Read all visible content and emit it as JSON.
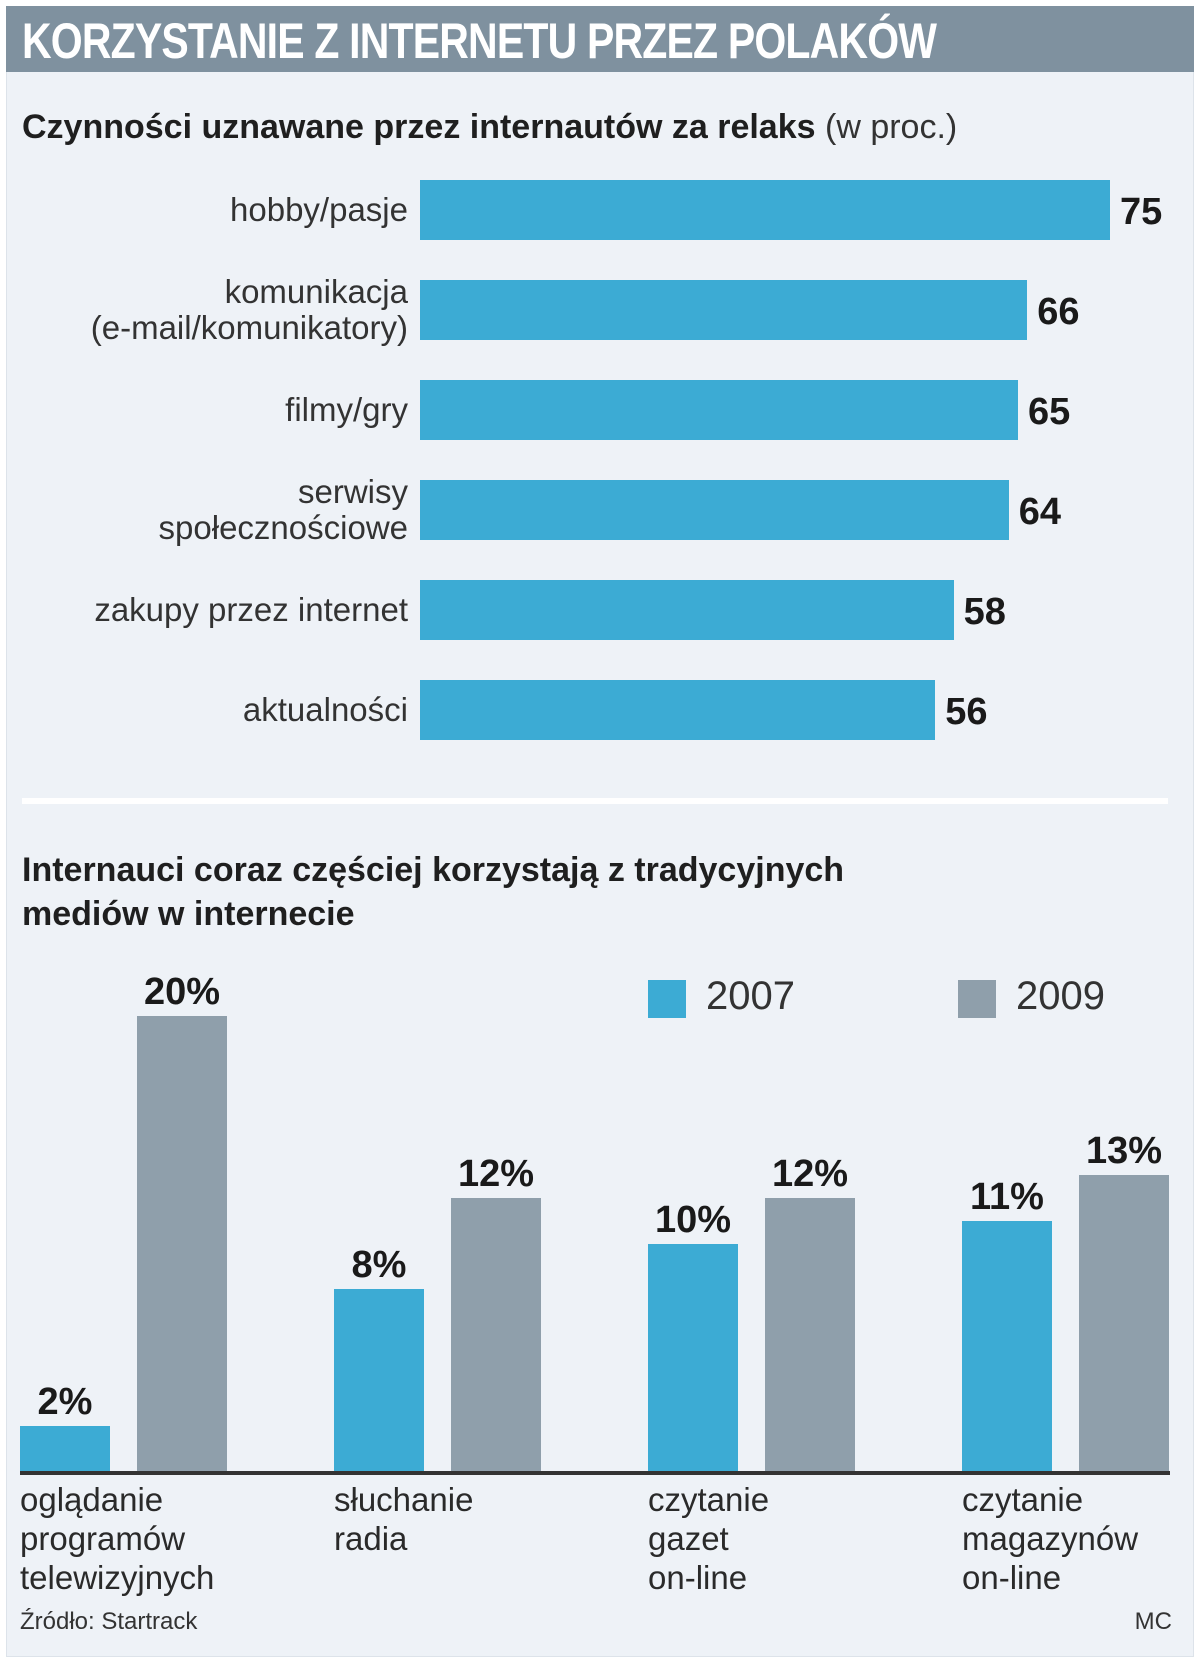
{
  "header": {
    "title": "KORZYSTANIE Z INTERNETU PRZEZ POLAKÓW"
  },
  "colors": {
    "year2007": "#3cabd4",
    "year2009": "#8f9fab",
    "header_bg": "#7f919f",
    "panel_bg": "#eef2f7"
  },
  "chart_data": [
    {
      "type": "bar",
      "orientation": "horizontal",
      "title": "Czynności uznawane przez internautów za relaks",
      "title_unit": "(w proc.)",
      "categories": [
        "hobby/pasje",
        "komunikacja\n(e-mail/komunikatory)",
        "filmy/gry",
        "serwisy\nspołecznościowe",
        "zakupy przez internet",
        "aktualności"
      ],
      "values": [
        75,
        66,
        65,
        64,
        58,
        56
      ],
      "value_labels": [
        "75",
        "66",
        "65",
        "64",
        "58",
        "56"
      ],
      "xlim": [
        0,
        75
      ],
      "grid": false
    },
    {
      "type": "bar",
      "orientation": "vertical",
      "title": "Internauci coraz częściej korzystają z tradycyjnych\nmediów w internecie",
      "categories": [
        "oglądanie\nprogramów\ntelewizyjnych",
        "słuchanie\nradia",
        "czytanie\ngazet\non-line",
        "czytanie\nmagazynów\non-line"
      ],
      "series": [
        {
          "name": "2007",
          "values": [
            2,
            8,
            10,
            11
          ],
          "labels": [
            "2%",
            "8%",
            "10%",
            "11%"
          ]
        },
        {
          "name": "2009",
          "values": [
            20,
            12,
            12,
            13
          ],
          "labels": [
            "20%",
            "12%",
            "12%",
            "13%"
          ]
        }
      ],
      "ylim": [
        0,
        20
      ],
      "legend": "top-right",
      "grid": false
    }
  ],
  "footer": {
    "source": "Źródło: Startrack",
    "author": "MC"
  }
}
